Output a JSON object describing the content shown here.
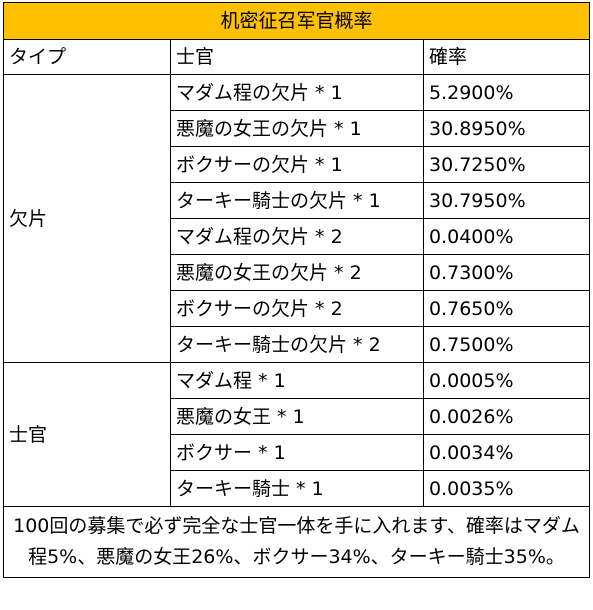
{
  "title": "机密征召军官概率",
  "headers": {
    "type": "タイプ",
    "officer": "士官",
    "probability": "確率"
  },
  "groups": [
    {
      "type": "欠片",
      "rows": [
        {
          "officer": "マダム程の欠片 * 1",
          "probability": "5.2900%"
        },
        {
          "officer": "悪魔の女王の欠片 * 1",
          "probability": "30.8950%"
        },
        {
          "officer": "ボクサーの欠片 * 1",
          "probability": "30.7250%"
        },
        {
          "officer": "ターキー騎士の欠片 * 1",
          "probability": "30.7950%"
        },
        {
          "officer": "マダム程の欠片 * 2",
          "probability": "0.0400%"
        },
        {
          "officer": "悪魔の女王の欠片 * 2",
          "probability": "0.7300%"
        },
        {
          "officer": "ボクサーの欠片 * 2",
          "probability": "0.7650%"
        },
        {
          "officer": "ターキー騎士の欠片 * 2",
          "probability": "0.7500%"
        }
      ]
    },
    {
      "type": "士官",
      "rows": [
        {
          "officer": "マダム程 * 1",
          "probability": "0.0005%"
        },
        {
          "officer": "悪魔の女王 * 1",
          "probability": "0.0026%"
        },
        {
          "officer": "ボクサー * 1",
          "probability": "0.0034%"
        },
        {
          "officer": "ターキー騎士 * 1",
          "probability": "0.0035%"
        }
      ]
    }
  ],
  "note": "100回の募集で必ず完全な士官一体を手に入れます、確率はマダム程5%、悪魔の女王26%、ボクサー34%、ターキー騎士35%。",
  "colors": {
    "title_background": "#ffc000",
    "border": "#000000"
  }
}
